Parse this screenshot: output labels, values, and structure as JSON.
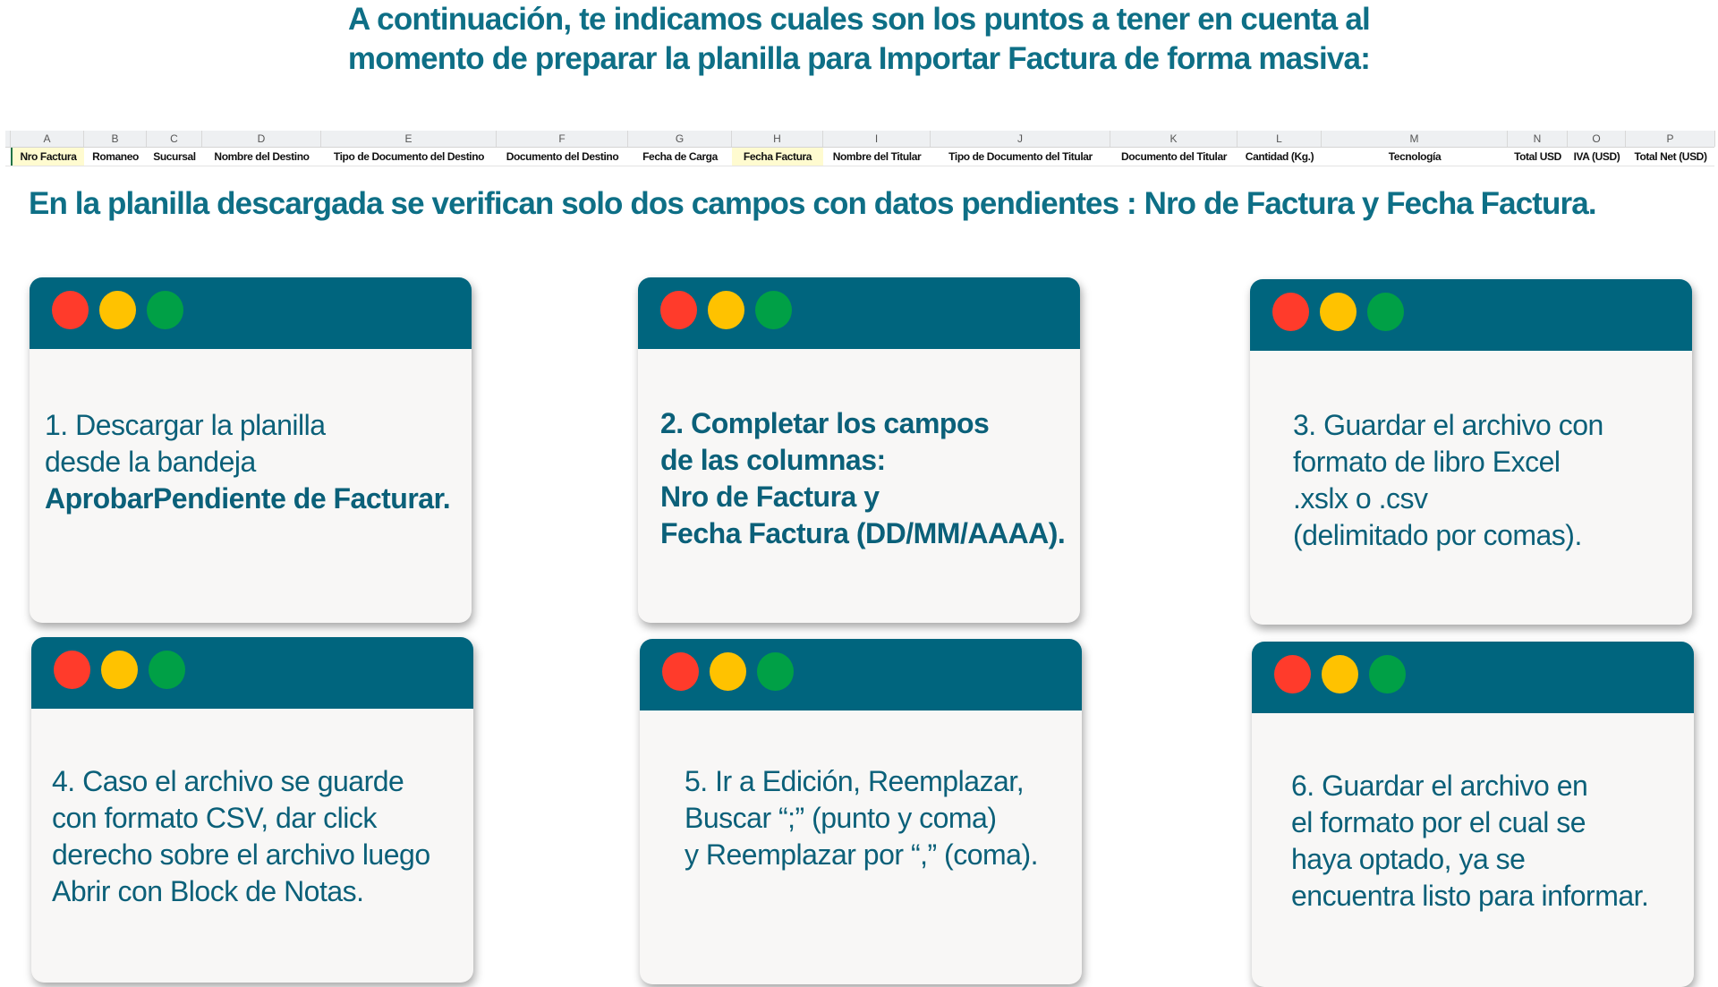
{
  "header": {
    "title_lines": [
      "A continuación, te indicamos cuales son los puntos a tener en cuenta al",
      "momento de preparar la planilla para Importar Factura de forma masiva:"
    ]
  },
  "spreadsheet": {
    "column_letters": [
      "A",
      "B",
      "C",
      "D",
      "E",
      "F",
      "G",
      "H",
      "I",
      "J",
      "K",
      "L",
      "M",
      "N",
      "O",
      "P"
    ],
    "column_headers": [
      "Nro Factura",
      "Romaneo",
      "Sucursal",
      "Nombre del Destino",
      "Tipo de Documento del Destino",
      "Documento del Destino",
      "Fecha de Carga",
      "Fecha Factura",
      "Nombre del Titular",
      "Tipo de Documento del Titular",
      "Documento del Titular",
      "Cantidad (Kg.)",
      "Tecnología",
      "Total USD",
      "IVA (USD)",
      "Total Net (USD)"
    ],
    "highlight_color": "#fffbd0"
  },
  "subtitle": "En la planilla descargada se verifican solo dos campos con datos pendientes :  Nro de Factura y Fecha Factura.",
  "colors": {
    "accent": "#00657e",
    "text": "#0b6079",
    "dot_red": "#ff3b2b",
    "dot_yellow": "#ffc200",
    "dot_green": "#00a046"
  },
  "steps": [
    {
      "lines": [
        "1. Descargar la planilla",
        "desde la bandeja",
        "AprobarPendiente de Facturar."
      ]
    },
    {
      "lines": [
        "2. Completar los campos",
        "de las columnas:",
        "Nro de Factura y",
        "Fecha Factura (DD/MM/AAAA)."
      ]
    },
    {
      "lines": [
        "3. Guardar el archivo con",
        "formato de libro Excel",
        ".xslx o .csv",
        "(delimitado por comas)."
      ]
    },
    {
      "lines": [
        "4. Caso el archivo se guarde",
        "con formato CSV, dar click",
        "derecho sobre el archivo luego",
        "Abrir con Block de Notas."
      ]
    },
    {
      "lines": [
        "5. Ir a Edición, Reemplazar,",
        "Buscar “;” (punto y coma)",
        "y Reemplazar por “,” (coma)."
      ]
    },
    {
      "lines": [
        "6. Guardar el archivo en",
        "el formato por el cual se",
        "haya optado, ya se",
        "encuentra listo para informar."
      ]
    }
  ]
}
